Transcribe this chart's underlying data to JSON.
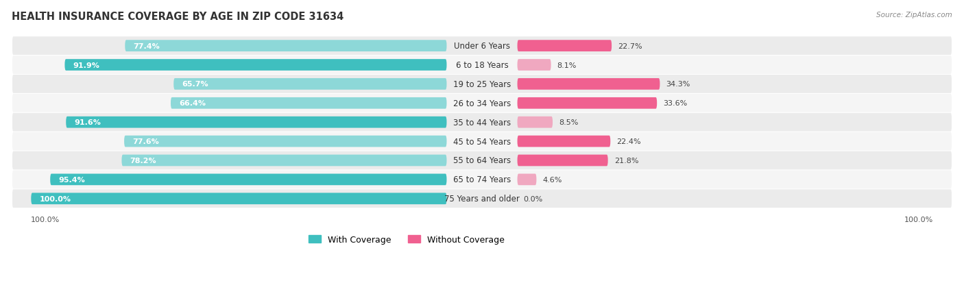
{
  "title": "HEALTH INSURANCE COVERAGE BY AGE IN ZIP CODE 31634",
  "source": "Source: ZipAtlas.com",
  "categories": [
    "Under 6 Years",
    "6 to 18 Years",
    "19 to 25 Years",
    "26 to 34 Years",
    "35 to 44 Years",
    "45 to 54 Years",
    "55 to 64 Years",
    "65 to 74 Years",
    "75 Years and older"
  ],
  "with_coverage": [
    77.4,
    91.9,
    65.7,
    66.4,
    91.6,
    77.6,
    78.2,
    95.4,
    100.0
  ],
  "without_coverage": [
    22.7,
    8.1,
    34.3,
    33.6,
    8.5,
    22.4,
    21.8,
    4.6,
    0.0
  ],
  "color_with_dark": "#3FBFBF",
  "color_with_light": "#8DD8D8",
  "color_without_dark": "#F06090",
  "color_without_light": "#F0A8C0",
  "row_bg_dark": "#EBEBEB",
  "row_bg_light": "#F5F5F5",
  "title_fontsize": 10.5,
  "source_fontsize": 7.5,
  "bar_label_fontsize": 8,
  "cat_label_fontsize": 8.5,
  "legend_fontsize": 9,
  "axis_label_fontsize": 8
}
